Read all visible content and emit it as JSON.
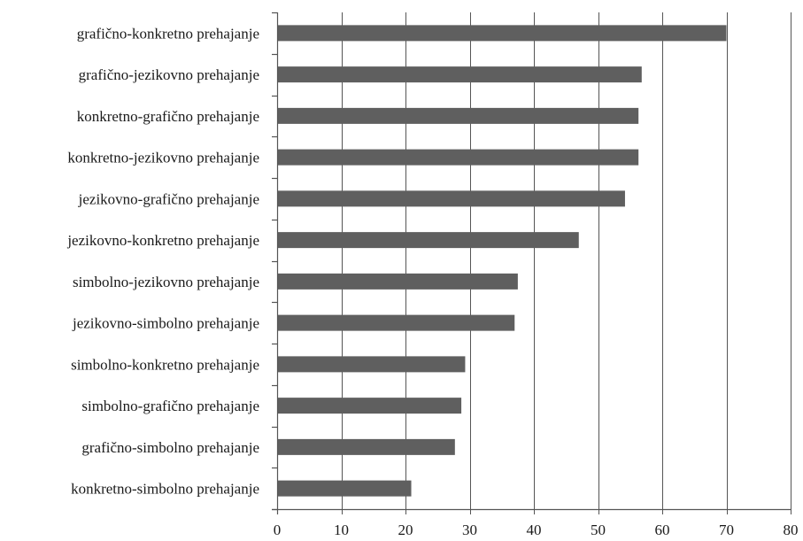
{
  "chart_data": {
    "type": "bar",
    "orientation": "horizontal",
    "title": "",
    "xlabel": "",
    "ylabel": "",
    "categories": [
      "grafično-konkretno prehajanje",
      "grafično-jezikovno prehajanje",
      "konkretno-grafično prehajanje",
      "konkretno-jezikovno prehajanje",
      "jezikovno-grafično prehajanje",
      "jezikovno-konkretno prehajanje",
      "simbolno-jezikovno prehajanje",
      "jezikovno-simbolno prehajanje",
      "simbolno-konkretno prehajanje",
      "simbolno-grafično prehajanje",
      "grafično-simbolno prehajanje",
      "konkretno-simbolno prehajanje"
    ],
    "values": [
      70,
      56.8,
      56.3,
      56.3,
      54.2,
      47,
      37.5,
      37,
      29.3,
      28.7,
      27.7,
      20.9
    ],
    "xlim": [
      0,
      80
    ],
    "xticks": [
      "0",
      "10",
      "20",
      "30",
      "40",
      "50",
      "60",
      "70",
      "80"
    ],
    "grid": "vertical",
    "legend": "none",
    "bar_color": "#5f5f5f"
  }
}
